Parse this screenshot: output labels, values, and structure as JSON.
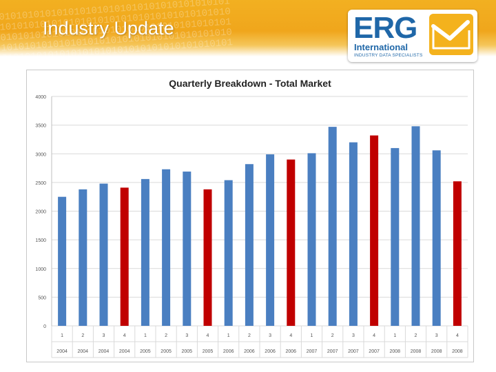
{
  "header": {
    "title": "Industry Update"
  },
  "logo": {
    "name": "ERG",
    "line2": "International",
    "tagline": "INDUSTRY DATA SPECIALISTS",
    "icon": "envelope-check-icon",
    "colors": {
      "blue": "#1f67a8",
      "gold": "#f4b21d"
    }
  },
  "colors": {
    "banner": "#f0a61c",
    "bar_default": "#4a7fc1",
    "bar_highlight": "#c00000",
    "grid": "#d9d9d9"
  },
  "chart_data": {
    "type": "bar",
    "title": "Quarterly Breakdown - Total Market",
    "xlabel": "",
    "ylabel": "",
    "ylim": [
      0,
      4000
    ],
    "yticks": [
      0,
      500,
      1000,
      1500,
      2000,
      2500,
      3000,
      3500,
      4000
    ],
    "grid": true,
    "legend": "none",
    "quarters": [
      "1",
      "2",
      "3",
      "4",
      "1",
      "2",
      "3",
      "4",
      "1",
      "2",
      "3",
      "4",
      "1",
      "2",
      "3",
      "4",
      "1",
      "2",
      "3",
      "4"
    ],
    "years": [
      "2004",
      "2004",
      "2004",
      "2004",
      "2005",
      "2005",
      "2005",
      "2005",
      "2006",
      "2006",
      "2006",
      "2006",
      "2007",
      "2007",
      "2007",
      "2007",
      "2008",
      "2008",
      "2008",
      "2008"
    ],
    "values": [
      2250,
      2380,
      2480,
      2410,
      2560,
      2730,
      2690,
      2380,
      2540,
      2820,
      2990,
      2900,
      3010,
      3470,
      3200,
      3320,
      3100,
      3480,
      3060,
      2520
    ],
    "highlight": [
      false,
      false,
      false,
      true,
      false,
      false,
      false,
      true,
      false,
      false,
      false,
      true,
      false,
      false,
      false,
      true,
      false,
      false,
      false,
      true
    ]
  }
}
